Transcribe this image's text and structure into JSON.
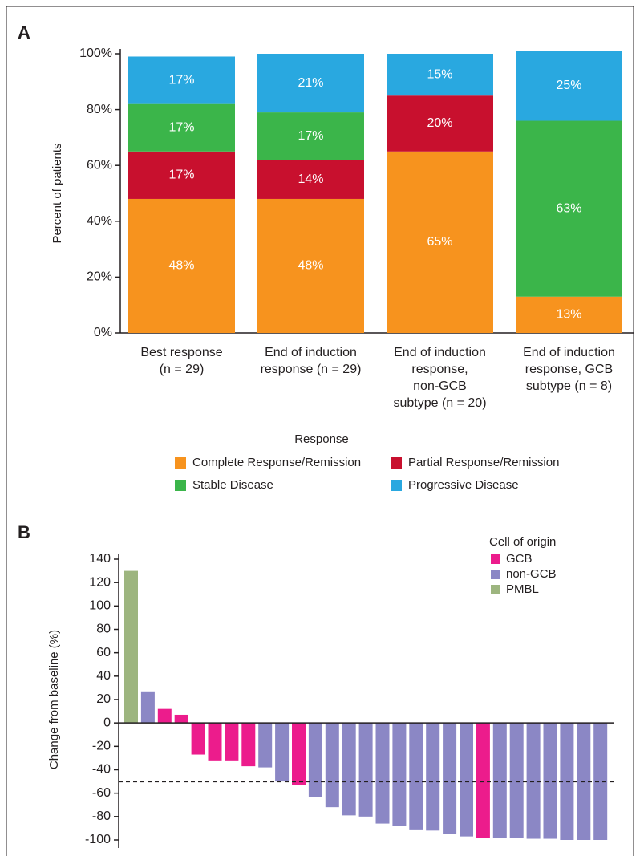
{
  "chart_data": [
    {
      "type": "stacked-bar",
      "panel_label": "A",
      "ylabel": "Percent of patients",
      "categories": [
        "Best response\n(n = 29)",
        "End of induction\nresponse (n = 29)",
        "End of induction\nresponse,\nnon-GCB\nsubtype (n = 20)",
        "End of induction\nresponse, GCB\nsubtype (n = 8)"
      ],
      "series": [
        {
          "name": "Complete Response/Remission",
          "color": "#f7931e",
          "values": [
            48,
            48,
            65,
            13
          ],
          "value_labels": [
            "48%",
            "48%",
            "65%",
            "13%"
          ]
        },
        {
          "name": "Partial Response/Remission",
          "color": "#c8102e",
          "values": [
            17,
            14,
            20,
            null
          ],
          "value_labels": [
            "17%",
            "14%",
            "20%",
            null
          ]
        },
        {
          "name": "Stable Disease",
          "color": "#3bb54a",
          "values": [
            17,
            17,
            null,
            63
          ],
          "value_labels": [
            "17%",
            "17%",
            null,
            "63%"
          ]
        },
        {
          "name": "Progressive Disease",
          "color": "#29a8e0",
          "values": [
            17,
            21,
            15,
            25
          ],
          "value_labels": [
            "17%",
            "21%",
            "15%",
            "25%"
          ]
        }
      ],
      "legend_title": "Response",
      "ylim": [
        0,
        100
      ],
      "yticks": [
        {
          "value": 0,
          "label": "0%"
        },
        {
          "value": 20,
          "label": "20%"
        },
        {
          "value": 40,
          "label": "40%"
        },
        {
          "value": 60,
          "label": "60%"
        },
        {
          "value": 80,
          "label": "80%"
        },
        {
          "value": 100,
          "label": "100%"
        }
      ]
    },
    {
      "type": "waterfall",
      "panel_label": "B",
      "ylabel": "Change from baseline (%)",
      "categories": [
        null,
        null,
        null,
        null,
        null,
        null,
        null,
        null,
        null,
        null,
        null,
        null,
        null,
        null,
        null,
        null,
        null,
        null,
        null,
        null,
        null,
        null,
        null,
        null,
        null,
        null,
        null,
        null,
        null
      ],
      "series": [
        {
          "name": "GCB",
          "color": "#ec1c8c",
          "values": [
            null,
            null,
            12,
            7,
            -27,
            -32,
            -32,
            -37,
            null,
            null,
            -53,
            null,
            null,
            null,
            null,
            null,
            null,
            null,
            null,
            null,
            null,
            -98,
            null,
            null,
            null,
            null,
            null,
            null,
            null
          ]
        },
        {
          "name": "non-GCB",
          "color": "#8b87c5",
          "values": [
            null,
            27,
            null,
            null,
            null,
            null,
            null,
            null,
            -38,
            -50,
            null,
            -63,
            -72,
            -79,
            -80,
            -86,
            -88,
            -91,
            -92,
            -95,
            -97,
            null,
            -98,
            -98,
            -99,
            -99,
            -100,
            -100,
            -100
          ]
        },
        {
          "name": "PMBL",
          "color": "#9db57f",
          "values": [
            130,
            null,
            null,
            null,
            null,
            null,
            null,
            null,
            null,
            null,
            null,
            null,
            null,
            null,
            null,
            null,
            null,
            null,
            null,
            null,
            null,
            null,
            null,
            null,
            null,
            null,
            null,
            null,
            null
          ]
        }
      ],
      "legend_title": "Cell of origin",
      "reference_line": -50,
      "ylim": [
        -100,
        140
      ],
      "yticks": [
        -100,
        -80,
        -60,
        -40,
        -20,
        0,
        20,
        40,
        60,
        80,
        100,
        120,
        140
      ]
    }
  ]
}
